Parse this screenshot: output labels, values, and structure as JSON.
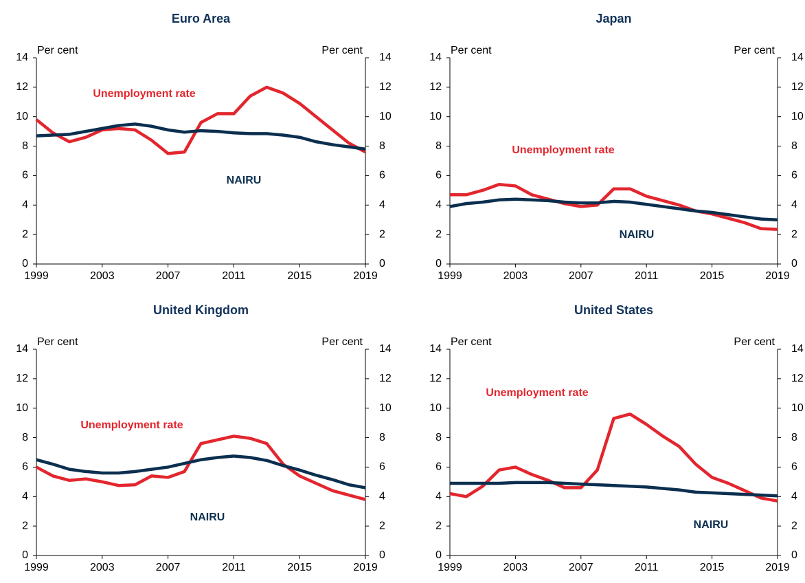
{
  "chart_data": [
    {
      "type": "line",
      "title": "Euro Area",
      "y_label": "Per cent",
      "x": [
        1999,
        2000,
        2001,
        2002,
        2003,
        2004,
        2005,
        2006,
        2007,
        2008,
        2009,
        2010,
        2011,
        2012,
        2013,
        2014,
        2015,
        2016,
        2017,
        2018,
        2019
      ],
      "xlim": [
        1999,
        2019
      ],
      "xticks": [
        1999,
        2003,
        2007,
        2011,
        2015,
        2019
      ],
      "ylim": [
        0,
        14
      ],
      "yticks": [
        0,
        2,
        4,
        6,
        8,
        10,
        12,
        14
      ],
      "series": [
        {
          "name": "Unemployment rate",
          "color": "#e3262e",
          "values": [
            9.8,
            8.9,
            8.3,
            8.6,
            9.1,
            9.2,
            9.1,
            8.4,
            7.5,
            7.6,
            9.6,
            10.2,
            10.2,
            11.4,
            12.0,
            11.6,
            10.9,
            10.0,
            9.1,
            8.2,
            7.6
          ]
        },
        {
          "name": "NAIRU",
          "color": "#0b2f4f",
          "values": [
            8.7,
            8.75,
            8.8,
            9.0,
            9.2,
            9.4,
            9.5,
            9.35,
            9.1,
            8.95,
            9.05,
            9.0,
            8.9,
            8.85,
            8.85,
            8.75,
            8.6,
            8.3,
            8.1,
            7.95,
            7.8
          ]
        }
      ]
    },
    {
      "type": "line",
      "title": "Japan",
      "y_label": "Per cent",
      "x": [
        1999,
        2000,
        2001,
        2002,
        2003,
        2004,
        2005,
        2006,
        2007,
        2008,
        2009,
        2010,
        2011,
        2012,
        2013,
        2014,
        2015,
        2016,
        2017,
        2018,
        2019
      ],
      "xlim": [
        1999,
        2019
      ],
      "xticks": [
        1999,
        2003,
        2007,
        2011,
        2015,
        2019
      ],
      "ylim": [
        0,
        14
      ],
      "yticks": [
        0,
        2,
        4,
        6,
        8,
        10,
        12,
        14
      ],
      "series": [
        {
          "name": "Unemployment rate",
          "color": "#e3262e",
          "values": [
            4.7,
            4.7,
            5.0,
            5.4,
            5.3,
            4.7,
            4.4,
            4.1,
            3.9,
            4.0,
            5.1,
            5.1,
            4.6,
            4.3,
            4.0,
            3.6,
            3.4,
            3.1,
            2.8,
            2.4,
            2.35
          ]
        },
        {
          "name": "NAIRU",
          "color": "#0b2f4f",
          "values": [
            3.9,
            4.1,
            4.2,
            4.35,
            4.4,
            4.35,
            4.3,
            4.2,
            4.15,
            4.15,
            4.25,
            4.2,
            4.05,
            3.9,
            3.75,
            3.6,
            3.5,
            3.35,
            3.2,
            3.05,
            3.0
          ]
        }
      ]
    },
    {
      "type": "line",
      "title": "United Kingdom",
      "y_label": "Per cent",
      "x": [
        1999,
        2000,
        2001,
        2002,
        2003,
        2004,
        2005,
        2006,
        2007,
        2008,
        2009,
        2010,
        2011,
        2012,
        2013,
        2014,
        2015,
        2016,
        2017,
        2018,
        2019
      ],
      "xlim": [
        1999,
        2019
      ],
      "xticks": [
        1999,
        2003,
        2007,
        2011,
        2015,
        2019
      ],
      "ylim": [
        0,
        14
      ],
      "yticks": [
        0,
        2,
        4,
        6,
        8,
        10,
        12,
        14
      ],
      "series": [
        {
          "name": "Unemployment rate",
          "color": "#e3262e",
          "values": [
            6.0,
            5.4,
            5.1,
            5.2,
            5.0,
            4.75,
            4.8,
            5.4,
            5.3,
            5.7,
            7.6,
            7.85,
            8.1,
            7.95,
            7.6,
            6.2,
            5.4,
            4.9,
            4.4,
            4.1,
            3.8
          ]
        },
        {
          "name": "NAIRU",
          "color": "#0b2f4f",
          "values": [
            6.5,
            6.2,
            5.85,
            5.7,
            5.6,
            5.6,
            5.7,
            5.85,
            6.0,
            6.25,
            6.5,
            6.65,
            6.75,
            6.65,
            6.45,
            6.1,
            5.8,
            5.45,
            5.15,
            4.8,
            4.6
          ]
        }
      ]
    },
    {
      "type": "line",
      "title": "United States",
      "y_label": "Per cent",
      "x": [
        1999,
        2000,
        2001,
        2002,
        2003,
        2004,
        2005,
        2006,
        2007,
        2008,
        2009,
        2010,
        2011,
        2012,
        2013,
        2014,
        2015,
        2016,
        2017,
        2018,
        2019
      ],
      "xlim": [
        1999,
        2019
      ],
      "xticks": [
        1999,
        2003,
        2007,
        2011,
        2015,
        2019
      ],
      "ylim": [
        0,
        14
      ],
      "yticks": [
        0,
        2,
        4,
        6,
        8,
        10,
        12,
        14
      ],
      "series": [
        {
          "name": "Unemployment rate",
          "color": "#e3262e",
          "values": [
            4.2,
            4.0,
            4.7,
            5.8,
            6.0,
            5.5,
            5.1,
            4.6,
            4.6,
            5.8,
            9.3,
            9.6,
            8.9,
            8.1,
            7.4,
            6.2,
            5.3,
            4.9,
            4.4,
            3.9,
            3.7
          ]
        },
        {
          "name": "NAIRU",
          "color": "#0b2f4f",
          "values": [
            4.9,
            4.9,
            4.9,
            4.9,
            4.95,
            4.95,
            4.95,
            4.9,
            4.85,
            4.8,
            4.75,
            4.7,
            4.65,
            4.55,
            4.45,
            4.3,
            4.25,
            4.2,
            4.15,
            4.1,
            4.05
          ]
        }
      ]
    }
  ]
}
